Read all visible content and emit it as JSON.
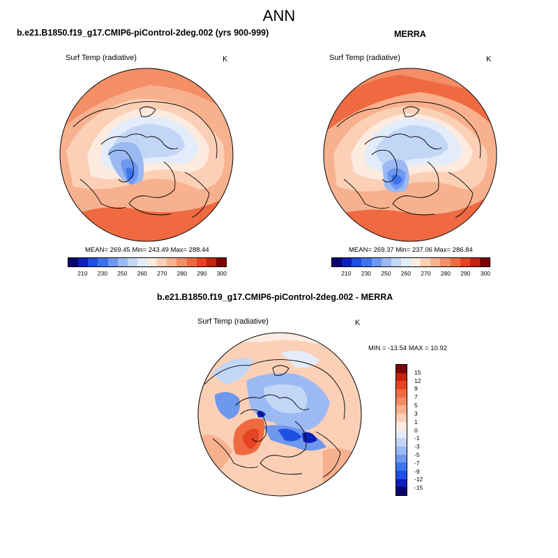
{
  "figure": {
    "title": "ANN"
  },
  "panels": [
    {
      "case_title": "b.e21.B1850.f19_g17.CMIP6-piControl-2deg.002 (yrs 900-999)",
      "variable_label": "Surf Temp (radiative)",
      "units": "K",
      "stats": "MEAN= 269.45  Min= 243.49  Max= 288.44"
    },
    {
      "case_title": "MERRA",
      "variable_label": "Surf Temp (radiative)",
      "units": "K",
      "stats": "MEAN= 269.37  Min= 237.06  Max= 286.84"
    },
    {
      "case_title": "b.e21.B1850.f19_g17.CMIP6-piControl-2deg.002 - MERRA",
      "variable_label": "Surf Temp (radiative)",
      "units": "K",
      "stats": "MIN = -13.54 MAX =  10.92"
    }
  ],
  "colorbars": {
    "absolute": {
      "labels": [
        "210",
        "230",
        "250",
        "260",
        "270",
        "280",
        "290",
        "300"
      ],
      "colors": [
        "#08066e",
        "#0d1fb8",
        "#1f4fe3",
        "#3d74ee",
        "#6e97ee",
        "#9bb9f3",
        "#c2d6f6",
        "#e2ecfa",
        "#fdebdf",
        "#fbd0b6",
        "#f8b18e",
        "#f48e66",
        "#ef6a41",
        "#e54322",
        "#c3240f",
        "#7d0505"
      ]
    },
    "difference": {
      "labels": [
        "15",
        "12",
        "9",
        "7",
        "5",
        "3",
        "1",
        "0",
        "-1",
        "-3",
        "-5",
        "-7",
        "-9",
        "-12",
        "-15"
      ],
      "colors": [
        "#7d0505",
        "#c3240f",
        "#e54322",
        "#ef6a41",
        "#f48e66",
        "#f8b18e",
        "#fbd0b6",
        "#fdebdf",
        "#e2ecfa",
        "#c2d6f6",
        "#9bb9f3",
        "#6e97ee",
        "#3d74ee",
        "#1f4fe3",
        "#0d1fb8",
        "#08066e"
      ]
    }
  }
}
